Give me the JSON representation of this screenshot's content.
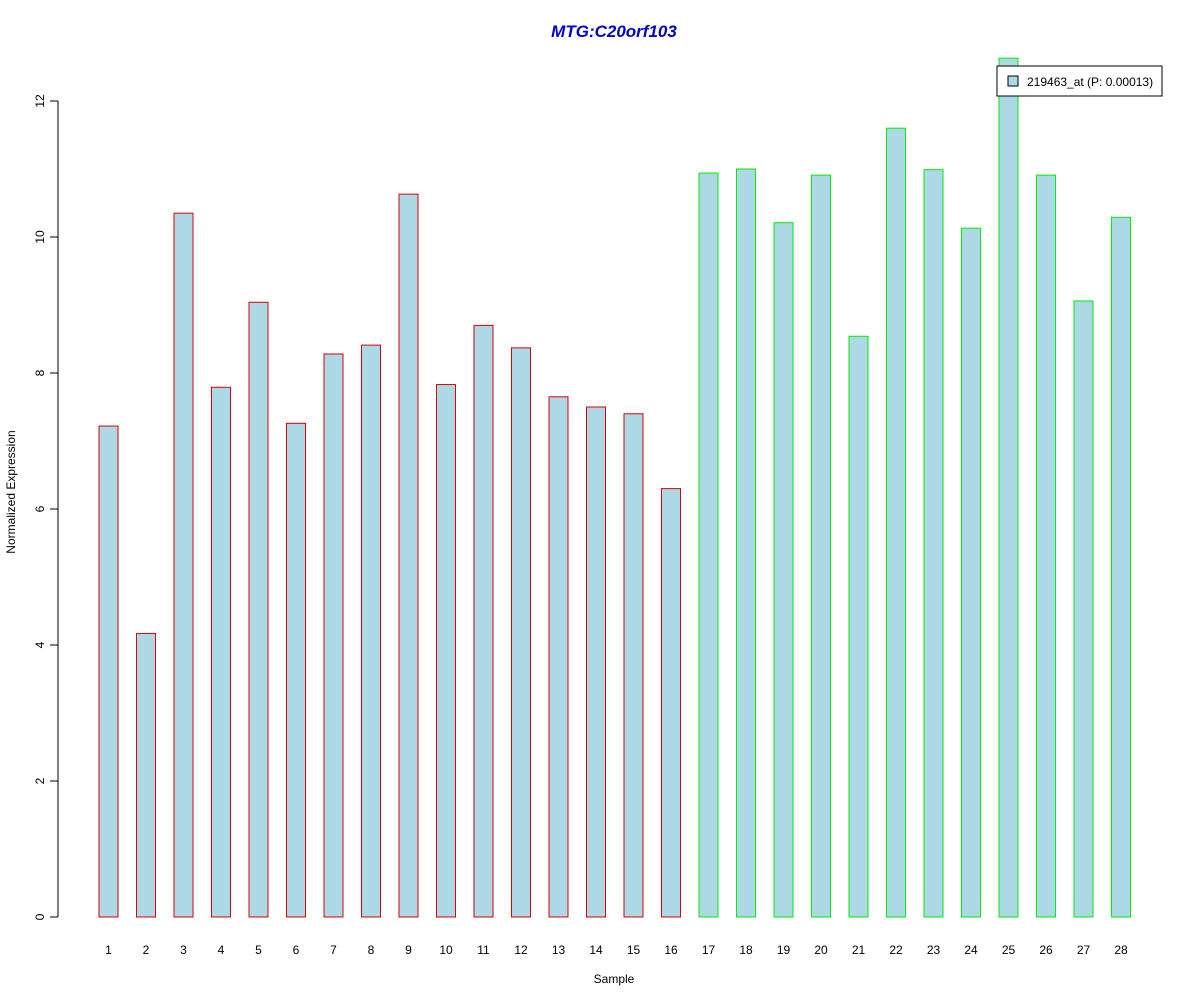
{
  "chart_data": {
    "type": "bar",
    "title": "MTG:C20orf103",
    "xlabel": "Sample",
    "ylabel": "Normalized Expression",
    "categories": [
      "1",
      "2",
      "3",
      "4",
      "5",
      "6",
      "7",
      "8",
      "9",
      "10",
      "11",
      "12",
      "13",
      "14",
      "15",
      "16",
      "17",
      "18",
      "19",
      "20",
      "21",
      "22",
      "23",
      "24",
      "25",
      "26",
      "27",
      "28"
    ],
    "values": [
      7.22,
      4.17,
      10.35,
      7.79,
      9.04,
      7.26,
      8.28,
      8.41,
      10.63,
      7.83,
      8.7,
      8.37,
      7.65,
      7.5,
      7.4,
      6.3,
      10.94,
      11.0,
      10.21,
      10.91,
      8.54,
      11.6,
      10.99,
      10.13,
      12.63,
      10.91,
      9.06,
      10.29
    ],
    "groups": [
      1,
      1,
      1,
      1,
      1,
      1,
      1,
      1,
      1,
      1,
      1,
      1,
      1,
      1,
      1,
      1,
      2,
      2,
      2,
      2,
      2,
      2,
      2,
      2,
      2,
      2,
      2,
      2
    ],
    "group_border_colors": {
      "1": "#dd0000",
      "2": "#00ee00"
    },
    "bar_fill": "#add8e6",
    "title_color": "#0000cc",
    "ylim": [
      0,
      12
    ],
    "yticks": [
      0,
      2,
      4,
      6,
      8,
      10,
      12
    ],
    "grid": false,
    "legend": {
      "placement": "top-right",
      "entries": [
        {
          "label": "219463_at (P: 0.00013)",
          "color": "#add8e6"
        }
      ]
    }
  }
}
